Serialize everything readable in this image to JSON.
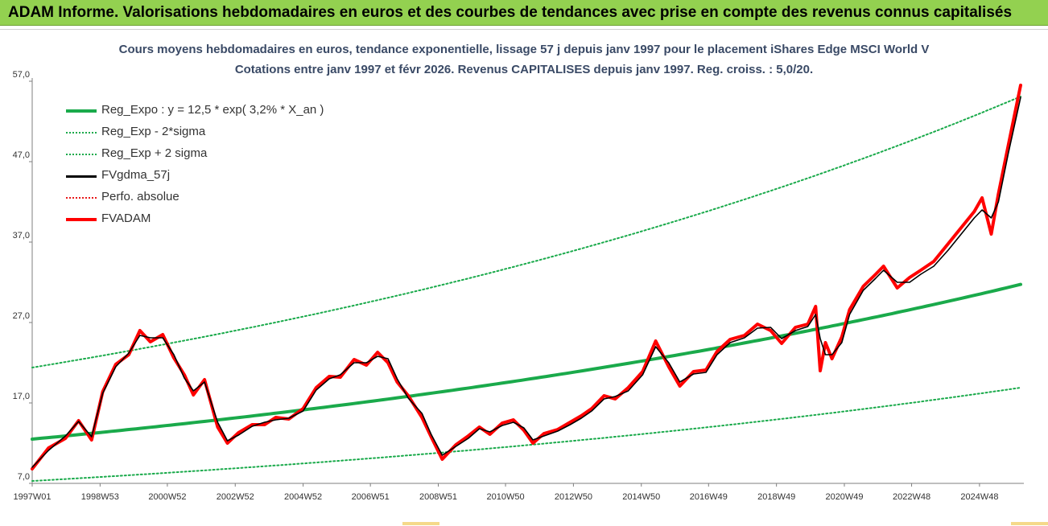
{
  "banner": {
    "text": "ADAM Informe. Valorisations hebdomadaires en euros et des courbes de tendances avec prise en compte des revenus connus capitalisés",
    "color": "#93d150"
  },
  "chart_data": {
    "type": "line",
    "title": "Cours moyens hebdomadaires en euros, tendance exponentielle, lissage 57 j depuis janv 1997 pour le placement iShares Edge MSCI World V",
    "subtitle": "Cotations entre janv 1997 et févr 2026. Revenus CAPITALISES depuis janv 1997. Reg. croiss. : 5,0/20.",
    "xlabel": "",
    "ylabel": "",
    "x_ticks": [
      "1997W01",
      "1998W53",
      "2000W52",
      "2002W52",
      "2004W52",
      "2006W51",
      "2008W51",
      "2010W50",
      "2012W50",
      "2014W50",
      "2016W49",
      "2018W49",
      "2020W49",
      "2022W48",
      "2024W48"
    ],
    "y_ticks": [
      "7,0",
      "17,0",
      "27,0",
      "37,0",
      "47,0",
      "57,0"
    ],
    "ylim": [
      7,
      57
    ],
    "xlim": [
      "1997W01",
      "2026W07"
    ],
    "grid": "none",
    "legend_position": "top-left",
    "series": [
      {
        "name": "Reg_Expo : y = 12,5 * exp( 3,2% *  X_an )",
        "color": "#1aaa4b",
        "style": "solid-thick",
        "equation": {
          "a": 12.5,
          "b": 0.032
        },
        "x": [
          "1997W01",
          "2026W07"
        ],
        "y": [
          12.5,
          31.7
        ]
      },
      {
        "name": "Reg_Exp - 2*sigma",
        "color": "#1aaa4b",
        "style": "dotted",
        "x": [
          "1997W01",
          "2026W07"
        ],
        "y": [
          7.3,
          18.9
        ]
      },
      {
        "name": "Reg_Exp + 2 sigma",
        "color": "#1aaa4b",
        "style": "dotted",
        "x": [
          "1997W01",
          "2026W07"
        ],
        "y": [
          21.4,
          55.1
        ]
      },
      {
        "name": "FVgdma_57j",
        "color": "#000000",
        "style": "solid",
        "x": [
          "1997W01",
          "1997W26",
          "1997W52",
          "1998W20",
          "1998W40",
          "1999W05",
          "1999W25",
          "1999W45",
          "2000W10",
          "2000W26",
          "2000W45",
          "2001W10",
          "2001W26",
          "2001W40",
          "2002W05",
          "2002W25",
          "2002W40",
          "2003W05",
          "2003W26",
          "2003W45",
          "2004W10",
          "2004W30",
          "2004W52",
          "2005W20",
          "2005W40",
          "2006W05",
          "2006W26",
          "2006W45",
          "2007W10",
          "2007W26",
          "2007W40",
          "2008W05",
          "2008W26",
          "2008W40",
          "2009W05",
          "2009W26",
          "2009W45",
          "2010W10",
          "2010W26",
          "2010W45",
          "2011W10",
          "2011W26",
          "2011W40",
          "2012W05",
          "2012W26",
          "2012W45",
          "2013W10",
          "2013W26",
          "2013W45",
          "2014W10",
          "2014W30",
          "2014W52",
          "2015W20",
          "2015W40",
          "2016W05",
          "2016W26",
          "2016W45",
          "2017W10",
          "2017W30",
          "2017W52",
          "2018W20",
          "2018W40",
          "2019W05",
          "2019W26",
          "2019W45",
          "2020W05",
          "2020W12",
          "2020W20",
          "2020W30",
          "2020W45",
          "2021W05",
          "2021W26",
          "2021W45",
          "2022W05",
          "2022W26",
          "2022W45",
          "2023W10",
          "2023W30",
          "2023W52",
          "2024W20",
          "2024W40",
          "2024W52",
          "2025W14",
          "2025W25",
          "2025W40",
          "2026W07"
        ],
        "y": [
          9.0,
          11.1,
          12.9,
          14.7,
          12.8,
          18.2,
          21.5,
          23.2,
          25.4,
          25.1,
          25.1,
          23.0,
          20.1,
          18.5,
          19.6,
          14.6,
          12.3,
          13.0,
          14.1,
          14.6,
          14.9,
          15.1,
          16.0,
          18.6,
          20.0,
          20.5,
          22.0,
          22.0,
          22.8,
          22.5,
          20.0,
          17.6,
          15.7,
          13.1,
          10.5,
          11.6,
          12.6,
          13.8,
          13.4,
          14.2,
          14.6,
          13.9,
          12.4,
          12.9,
          13.5,
          14.3,
          15.1,
          16.0,
          17.5,
          17.8,
          18.5,
          20.5,
          24.0,
          22.0,
          19.6,
          20.6,
          20.8,
          23.0,
          24.5,
          25.1,
          26.3,
          26.4,
          25.0,
          26.0,
          26.5,
          28.0,
          25.0,
          23.0,
          23.0,
          24.5,
          28.0,
          31.0,
          32.5,
          33.5,
          32.0,
          32.0,
          33.0,
          34.0,
          36.0,
          38.0,
          40.0,
          41.0,
          40.0,
          42.0,
          48.0,
          55.0
        ]
      },
      {
        "name": "Perfo. absolue",
        "color": "#e8191a",
        "style": "dotted",
        "x": [],
        "y": []
      },
      {
        "name": "FVADAM",
        "color": "#ff0000",
        "style": "solid-thick",
        "x": [
          "1997W01",
          "1997W26",
          "1997W52",
          "1998W20",
          "1998W40",
          "1999W05",
          "1999W25",
          "1999W45",
          "2000W10",
          "2000W26",
          "2000W45",
          "2001W10",
          "2001W26",
          "2001W40",
          "2002W05",
          "2002W25",
          "2002W40",
          "2003W05",
          "2003W26",
          "2003W45",
          "2004W10",
          "2004W30",
          "2004W52",
          "2005W20",
          "2005W40",
          "2006W05",
          "2006W26",
          "2006W45",
          "2007W10",
          "2007W26",
          "2007W40",
          "2008W05",
          "2008W26",
          "2008W40",
          "2009W05",
          "2009W26",
          "2009W45",
          "2010W10",
          "2010W26",
          "2010W45",
          "2011W10",
          "2011W26",
          "2011W40",
          "2012W05",
          "2012W26",
          "2012W45",
          "2013W10",
          "2013W26",
          "2013W45",
          "2014W10",
          "2014W30",
          "2014W52",
          "2015W20",
          "2015W40",
          "2016W05",
          "2016W26",
          "2016W45",
          "2017W10",
          "2017W30",
          "2017W52",
          "2018W20",
          "2018W40",
          "2019W05",
          "2019W26",
          "2019W45",
          "2020W05",
          "2020W12",
          "2020W20",
          "2020W30",
          "2020W45",
          "2021W05",
          "2021W26",
          "2021W45",
          "2022W05",
          "2022W26",
          "2022W45",
          "2023W10",
          "2023W30",
          "2023W52",
          "2024W20",
          "2024W40",
          "2024W52",
          "2025W14",
          "2025W25",
          "2025W40",
          "2026W07"
        ],
        "y": [
          8.8,
          11.4,
          12.6,
          14.8,
          12.4,
          18.4,
          21.8,
          23.0,
          26.0,
          24.6,
          25.5,
          22.6,
          20.5,
          18.0,
          19.9,
          14.0,
          12.0,
          13.3,
          14.3,
          14.3,
          15.2,
          15.0,
          16.3,
          18.9,
          20.3,
          20.2,
          22.4,
          21.7,
          23.3,
          22.0,
          19.6,
          17.9,
          15.2,
          12.8,
          10.0,
          11.8,
          12.9,
          14.0,
          13.1,
          14.5,
          14.9,
          13.6,
          12.0,
          13.2,
          13.7,
          14.6,
          15.4,
          16.3,
          17.9,
          17.5,
          18.9,
          20.9,
          24.7,
          21.5,
          19.1,
          20.9,
          21.1,
          23.4,
          24.9,
          25.4,
          26.8,
          26.0,
          24.4,
          26.4,
          26.8,
          29.0,
          21.0,
          24.5,
          22.5,
          25.2,
          28.6,
          31.5,
          33.0,
          34.0,
          31.3,
          32.6,
          33.5,
          34.6,
          36.8,
          38.8,
          40.8,
          42.5,
          38.0,
          43.0,
          49.0,
          56.5
        ]
      }
    ]
  }
}
